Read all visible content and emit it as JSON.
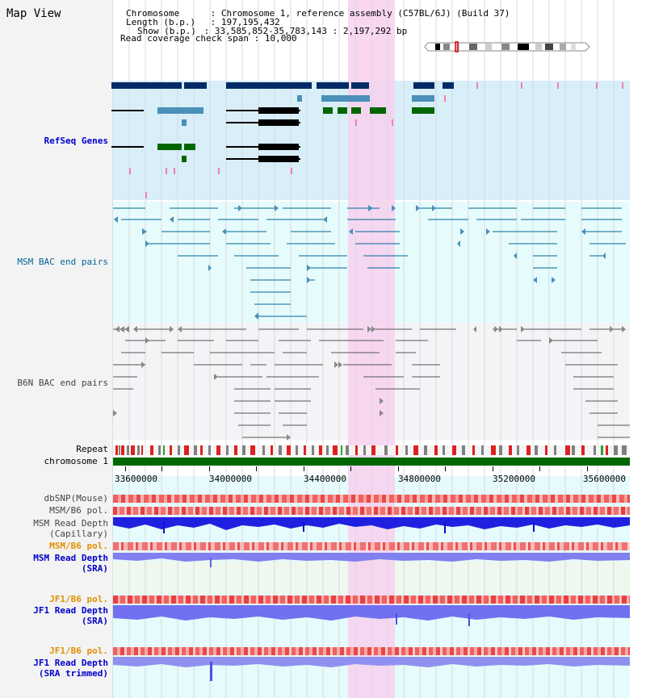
{
  "app": {
    "title": "Map View"
  },
  "header": {
    "chromosome_key": "Chromosome",
    "chromosome_val": "Chromosome 1, reference assembly (C57BL/6J) (Build 37)",
    "length_key": "Length (b.p.)",
    "length_val": "197,195,432",
    "show_key": "Show (b.p.)",
    "show_val": "33,585,852-35,783,143 : 2,197,292 bp",
    "coverage_key": "Read coverage check span",
    "coverage_val": "10,000"
  },
  "tracks": {
    "refseq": {
      "label": "RefSeq Genes",
      "color": "#0000cc"
    },
    "msm_bac": {
      "label": "MSM BAC end pairs",
      "color": "#006699"
    },
    "b6n_bac": {
      "label": "B6N BAC end pairs",
      "color": "#444444"
    },
    "repeat": {
      "label": "Repeat"
    },
    "chrom": {
      "label": "chromosome 1"
    },
    "dbsnp": {
      "label": "dbSNP(Mouse)"
    },
    "msm_b6_pol_1": {
      "label": "MSM/B6 pol."
    },
    "msm_depth_cap_1": {
      "label": "MSM Read Depth"
    },
    "msm_depth_cap_2": {
      "label": "(Capillary)"
    },
    "msm_b6_pol_2": {
      "label": "MSM/B6 pol."
    },
    "msm_depth_sra_1": {
      "label": "MSM Read Depth"
    },
    "msm_depth_sra_2": {
      "label": "(SRA)"
    },
    "jf1_b6_pol_1": {
      "label": "JF1/B6 pol."
    },
    "jf1_depth_sra_1": {
      "label": "JF1 Read Depth"
    },
    "jf1_depth_sra_2": {
      "label": "(SRA)"
    },
    "jf1_b6_pol_2": {
      "label": "JF1/B6 pol."
    },
    "jf1_depth_trim_1": {
      "label": "JF1 Read Depth"
    },
    "jf1_depth_trim_2": {
      "label": "(SRA trimmed)"
    }
  },
  "ruler": {
    "labels": [
      "33600000",
      "34000000",
      "34400000",
      "34800000",
      "35200000",
      "35600000"
    ]
  },
  "colors": {
    "highlight": "#f8d0ee",
    "refseq_bg": "#d8eef8",
    "cyan_bg": "#e6fbfb",
    "dark_gene": "#002b66",
    "mid_gene": "#4a90b8",
    "black_gene": "#000000",
    "green_gene": "#006600",
    "chrom_bar": "#006600",
    "depth_blue": "#2020e0",
    "depth_lavender": "#8080f0",
    "pol_red": "#f05050",
    "pink_marks": "#f080b0",
    "label_blue": "#0000cc",
    "label_teal": "#006699",
    "label_orange": "#e09000"
  }
}
